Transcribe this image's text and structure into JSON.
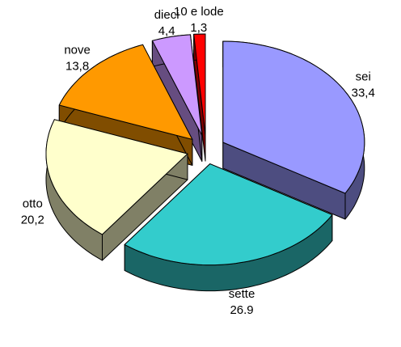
{
  "chart_data": {
    "type": "pie",
    "categories": [
      "sei",
      "sette",
      "otto",
      "nove",
      "dieci",
      "10 e lode"
    ],
    "values": [
      33.4,
      26.9,
      20.2,
      13.8,
      4.4,
      1.3
    ],
    "value_labels": [
      "33,4",
      "26.9",
      "20,2",
      "13,8",
      "4,4",
      "1,3"
    ],
    "colors": [
      "#9999ff",
      "#33cccc",
      "#ffffcc",
      "#ff9900",
      "#cc99ff",
      "#ff0000"
    ]
  }
}
